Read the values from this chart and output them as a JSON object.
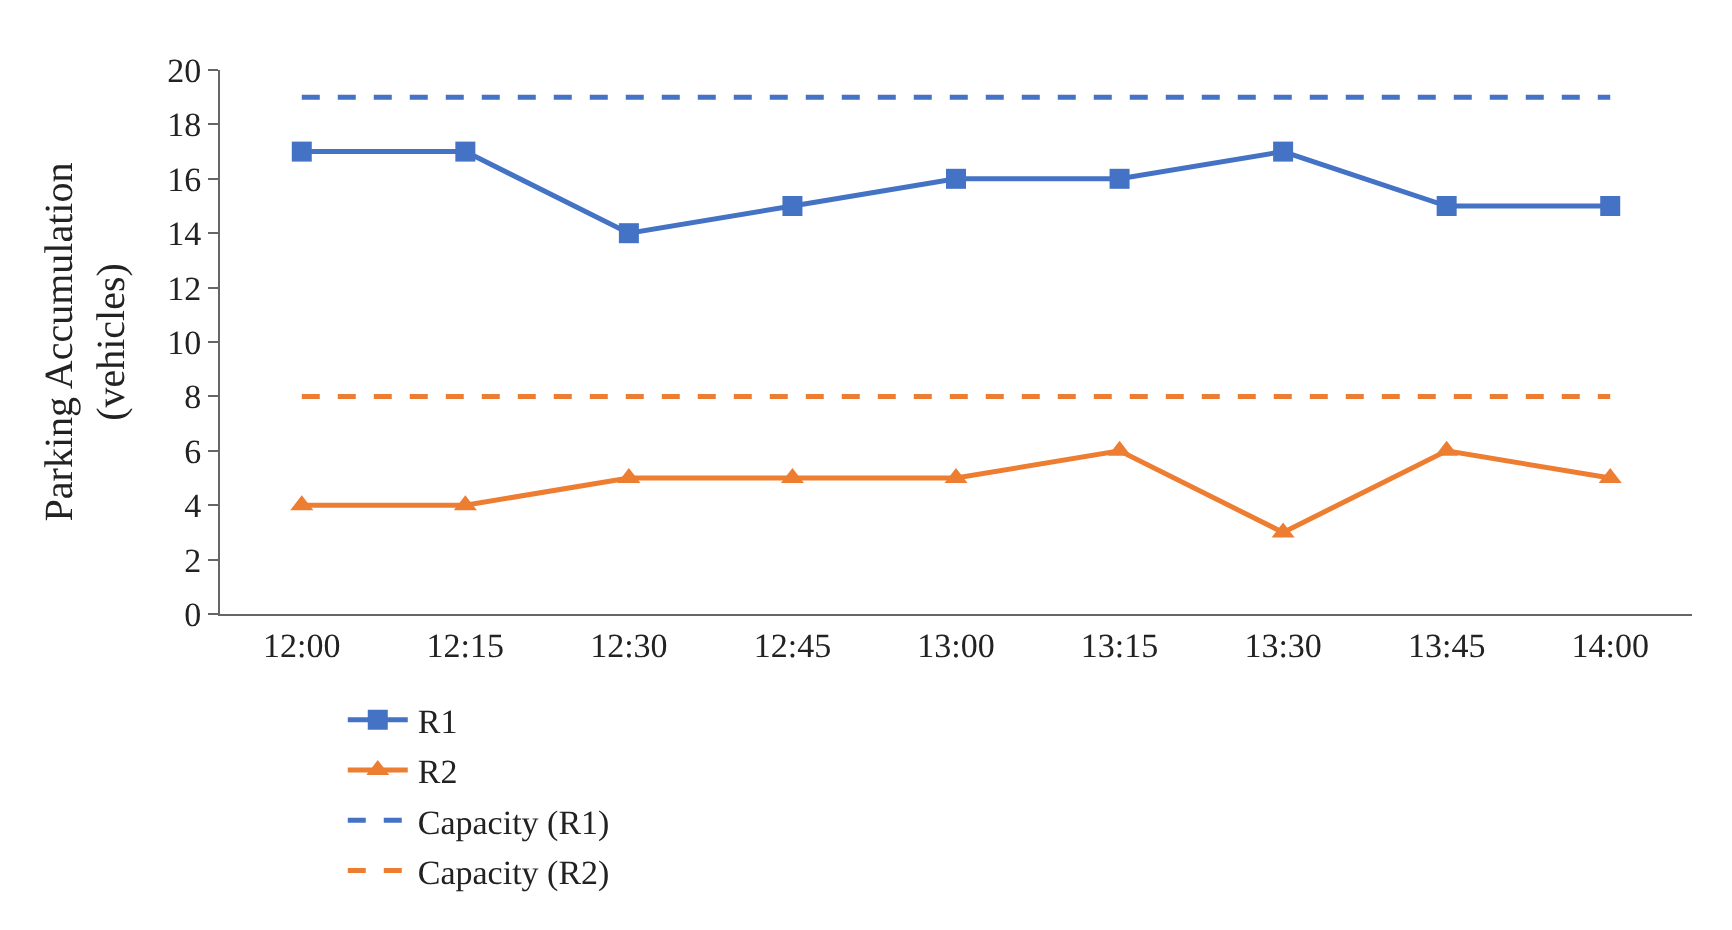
{
  "chart_data": {
    "type": "line",
    "ylabel": "Parking Accumulation\n(vehicles)",
    "categories": [
      "12:00",
      "12:15",
      "12:30",
      "12:45",
      "13:00",
      "13:15",
      "13:30",
      "13:45",
      "14:00"
    ],
    "series": [
      {
        "name": "R1",
        "color": "#4472c4",
        "marker": "square",
        "line_style": "solid",
        "values": [
          17,
          17,
          14,
          15,
          16,
          16,
          17,
          15,
          15
        ]
      },
      {
        "name": "R2",
        "color": "#ed7d31",
        "marker": "triangle",
        "line_style": "solid",
        "values": [
          4,
          4,
          5,
          5,
          5,
          6,
          3,
          6,
          5
        ]
      },
      {
        "name": "Capacity (R1)",
        "color": "#4472c4",
        "marker": "none",
        "line_style": "dashed",
        "values": [
          19,
          19,
          19,
          19,
          19,
          19,
          19,
          19,
          19
        ]
      },
      {
        "name": "Capacity (R2)",
        "color": "#ed7d31",
        "marker": "none",
        "line_style": "dashed",
        "values": [
          8,
          8,
          8,
          8,
          8,
          8,
          8,
          8,
          8
        ]
      }
    ],
    "ylim": [
      0,
      20
    ],
    "yticks": [
      0,
      2,
      4,
      6,
      8,
      10,
      12,
      14,
      16,
      18,
      20
    ],
    "grid": false,
    "legend": "bottom"
  }
}
